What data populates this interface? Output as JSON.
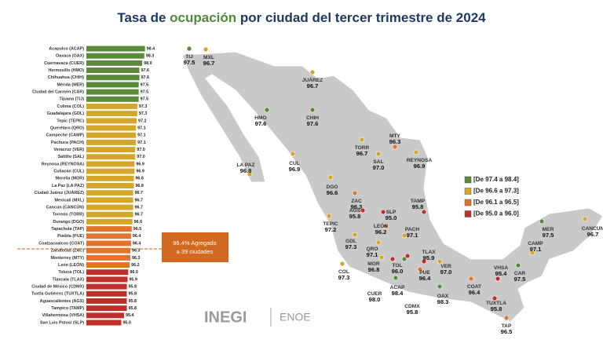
{
  "chart_data": {
    "type": "bar",
    "orientation": "horizontal",
    "title_parts": [
      "Tasa de ",
      "ocupación",
      " por ciudad del tercer trimestre de 2024"
    ],
    "categories": [
      "Acapulco (ACAP)",
      "Oaxaca (OAX)",
      "Cuernavaca (CUER)",
      "Hermosillo (HMO)",
      "Chihuahua (CHIH)",
      "Mérida (MER)",
      "Ciudad del Carmen (CAR)",
      "Tijuana (TIJ)",
      "Colima (COL)",
      "Guadalajara (GDL)",
      "Tepic (TEPIC)",
      "Querétaro (QRO)",
      "Campeche (CAMP)",
      "Pachuca (PACH)",
      "Veracruz (VER)",
      "Saltillo (SAL)",
      "Reynosa (REYNOSA)",
      "Culiacán (CUL)",
      "Morelia (MOR)",
      "La Paz (LA PAZ)",
      "Ciudad Juárez (JUÁREZ)",
      "Mexicali (MXL)",
      "Cancún (CANCÚN)",
      "Torreón (TORR)",
      "Durango (DGO)",
      "Tapachula (TAP)",
      "Puebla (PUE)",
      "Coatzacoalcos (COAT)",
      "Zacatecas (ZAC)",
      "Monterrey (MTY)",
      "León (LEÓN)",
      "Toluca (TOL)",
      "Tlaxcala (TLAX)",
      "Ciudad de México (CDMX)",
      "Tuxtla Gutiérrez (TUXTLA)",
      "Aguascalientes (AGS)",
      "Tampico (TAMP)",
      "Villahermosa (VHSA)",
      "San Luis Potosí (SLP)"
    ],
    "values": [
      98.4,
      98.3,
      98.0,
      97.6,
      97.6,
      97.5,
      97.5,
      97.5,
      97.3,
      97.3,
      97.2,
      97.1,
      97.1,
      97.1,
      97.0,
      97.0,
      96.9,
      96.9,
      96.8,
      96.8,
      96.7,
      96.7,
      96.7,
      96.7,
      96.6,
      96.5,
      96.4,
      96.4,
      96.3,
      96.3,
      96.2,
      96.0,
      95.9,
      95.8,
      95.8,
      95.8,
      95.8,
      95.4,
      95.0
    ],
    "value_labels": [
      "98.4",
      "98.3",
      "98.0",
      "97.6",
      "97.6",
      "97.5",
      "97.5",
      "97.5",
      "97.3",
      "97.3",
      "97.2",
      "97.1",
      "97.1",
      "97.1",
      "97.0",
      "97.0",
      "96.9",
      "96.9",
      "96.8",
      "96.8",
      "96.7",
      "96.7",
      "96.7",
      "96.7",
      "96.6",
      "96.5",
      "96.4",
      "96.4",
      "96.3",
      "96.3",
      "96.2",
      "96.0",
      "95.9",
      "95.8",
      "95.8",
      "95.8",
      "95.8",
      "95.4",
      "95.0"
    ],
    "xlim": [
      90,
      99
    ],
    "legend": [
      {
        "label": "[De 97.4 a 98.4]",
        "min": 97.4,
        "max": 98.4,
        "color": "#5a8a3a"
      },
      {
        "label": "[De 96.6 a 97.3]",
        "min": 96.6,
        "max": 97.3,
        "color": "#d4a62a"
      },
      {
        "label": "[De 96.1 a 96.5]",
        "min": 96.1,
        "max": 96.5,
        "color": "#e0742a"
      },
      {
        "label": "[De 95.0 a 96.0]",
        "min": 95.0,
        "max": 96.0,
        "color": "#c0302a"
      }
    ],
    "annotation": [
      "96.4% Agregado",
      "a 39 ciudades"
    ],
    "map_points": {
      "labels": [
        "TIJ",
        "MXL",
        "JUÁREZ",
        "HMO",
        "CHIH",
        "LA PAZ",
        "CUL",
        "DGO",
        "TORR",
        "SAL",
        "MTY",
        "REYNOSA",
        "ZAC",
        "TAMP",
        "AGS",
        "SLP",
        "TEPIC",
        "LEÓN",
        "GDL",
        "QRO",
        "PACH",
        "TLAX",
        "MOR",
        "TOL",
        "PUE",
        "VER",
        "COL",
        "ACAP",
        "CUER",
        "CDMX",
        "OAX",
        "COAT",
        "VHSA",
        "TUXTLA",
        "TAP",
        "CAMP",
        "CAR",
        "MER",
        "CANCUN"
      ],
      "values": [
        97.5,
        96.7,
        96.7,
        97.6,
        97.6,
        96.8,
        96.9,
        96.6,
        96.7,
        97.0,
        96.3,
        96.9,
        96.3,
        95.8,
        95.8,
        95.0,
        97.2,
        96.2,
        97.3,
        97.1,
        97.1,
        95.9,
        96.8,
        96.0,
        96.4,
        97.0,
        97.3,
        98.4,
        98.0,
        95.8,
        98.3,
        96.4,
        95.4,
        95.8,
        96.5,
        97.1,
        97.5,
        97.5,
        96.7
      ],
      "value_labels": [
        "97.5",
        "96.7",
        "96.7",
        "97.6",
        "97.6",
        "96.8",
        "96.9",
        "96.6",
        "96.7",
        "97.0",
        "96.3",
        "96.9",
        "96.3",
        "95.8",
        "95.8",
        "95.0",
        "97.2",
        "96.2",
        "97.3",
        "97.1",
        "97.1",
        "95.9",
        "96.8",
        "96.0",
        "96.4",
        "97.0",
        "97.3",
        "98.4",
        "98.0",
        "95.8",
        "98.3",
        "96.4",
        "95.4",
        "95.8",
        "96.5",
        "97.1",
        "97.5",
        "97.5",
        "96.7"
      ]
    },
    "logos": [
      "INEGI",
      "ENOE"
    ]
  }
}
